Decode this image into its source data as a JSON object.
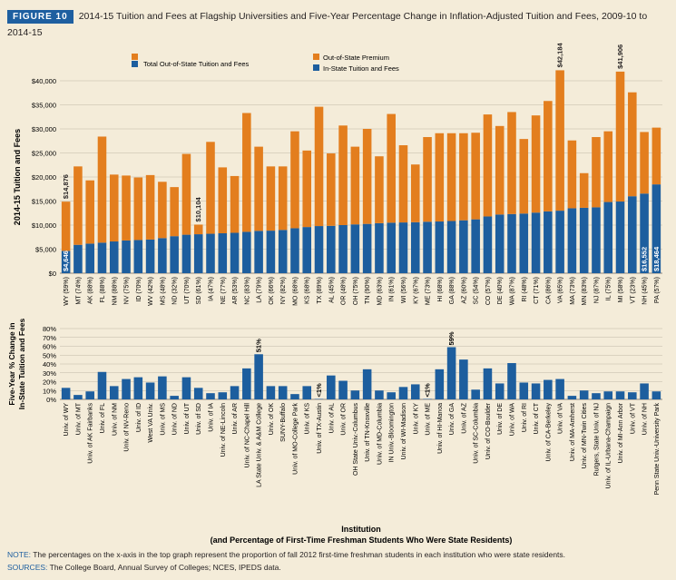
{
  "header": {
    "figure_label": "FIGURE 10",
    "title": "2014-15 Tuition and Fees at Flagship Universities and Five-Year Percentage Change in Inflation-Adjusted Tuition and Fees, 2009-10 to 2014-15"
  },
  "colors": {
    "in_state": "#1d5e9e",
    "premium": "#e37e1e",
    "background": "#f4ecd9",
    "grid": "#bfb8a8",
    "annotation": "#231f20"
  },
  "footer": {
    "note_label": "NOTE:",
    "note_text": "The percentages on the x-axis in the top graph represent the proportion of fall 2012 first-time freshman students in each institution who were state residents.",
    "sources_label": "SOURCES:",
    "sources_text": "The College Board, Annual Survey of Colleges; NCES, IPEDS data."
  },
  "chart_data": [
    {
      "type": "bar",
      "stacked": true,
      "ylabel": "2014-15 Tuition and Fees",
      "ylim": [
        0,
        40000
      ],
      "yticks": [
        "$0",
        "$5,000",
        "$10,000",
        "$15,000",
        "$20,000",
        "$25,000",
        "$30,000",
        "$35,000",
        "$40,000"
      ],
      "grid": true,
      "legend": [
        "Total Out-of-State Tuition and Fees",
        "Out-of-State Premium",
        "In-State Tuition and Fees"
      ],
      "categories": [
        "WY (59%)",
        "MT (74%)",
        "AK (88%)",
        "FL (88%)",
        "NM (88%)",
        "NV (75%)",
        "ID (70%)",
        "WV (42%)",
        "MS (48%)",
        "ND (32%)",
        "UT (70%)",
        "SD (61%)",
        "IA (47%)",
        "NE (77%)",
        "AR (53%)",
        "NC (83%)",
        "LA (79%)",
        "OK (66%)",
        "NY (82%)",
        "MO (68%)",
        "KS (68%)",
        "TX (89%)",
        "AL (45%)",
        "OR (48%)",
        "OH (75%)",
        "TN (90%)",
        "MD (63%)",
        "IN (61%)",
        "WI (56%)",
        "KY (67%)",
        "ME (73%)",
        "HI (68%)",
        "GA (88%)",
        "AZ (60%)",
        "SC (54%)",
        "CO (57%)",
        "DE (40%)",
        "WA (87%)",
        "RI (48%)",
        "CT (71%)",
        "CA (86%)",
        "VA (65%)",
        "MA (73%)",
        "MN (83%)",
        "NJ (87%)",
        "IL (75%)",
        "MI (58%)",
        "VT (23%)",
        "NH (45%)",
        "PA (57%)"
      ],
      "series": [
        {
          "name": "In-State Tuition and Fees",
          "values": [
            4646,
            5900,
            6150,
            6350,
            6600,
            6800,
            6900,
            7000,
            7300,
            7700,
            8000,
            8100,
            8200,
            8300,
            8400,
            8600,
            8800,
            8850,
            9000,
            9350,
            9600,
            9800,
            9850,
            10000,
            10150,
            10250,
            10400,
            10500,
            10550,
            10600,
            10700,
            10750,
            10850,
            11000,
            11200,
            11800,
            12200,
            12300,
            12400,
            12600,
            12850,
            13000,
            13500,
            13600,
            13700,
            14800,
            14900,
            16000,
            16552,
            18464
          ]
        },
        {
          "name": "Out-of-State Premium",
          "values": [
            10230,
            16300,
            13150,
            22050,
            13900,
            13500,
            13000,
            13400,
            11700,
            10200,
            16800,
            2004,
            19100,
            13700,
            11800,
            24700,
            17500,
            13350,
            13200,
            20150,
            15900,
            24800,
            15050,
            20700,
            16150,
            19750,
            13900,
            22600,
            16050,
            12000,
            17600,
            18350,
            18250,
            18100,
            18000,
            21200,
            18400,
            21200,
            15500,
            20200,
            22950,
            29184,
            14100,
            7200,
            14600,
            14700,
            27006,
            21600,
            12800,
            11800
          ]
        }
      ],
      "data_labels": {
        "WY (59%)": [
          "$4,646",
          "$14,876"
        ],
        "SD (61%)": [
          "$10,104"
        ],
        "VA (65%)": [
          "$42,184"
        ],
        "MI (58%)": [
          "$41,906"
        ],
        "NH (45%)": [
          "$16,552"
        ],
        "PA (57%)": [
          "$18,464"
        ]
      }
    },
    {
      "type": "bar",
      "ylabel": "Five-Year % Change in In-State Tuition and Fees",
      "xlabel": "Institution",
      "xlabel_sub": "(and Percentage of First-Time Freshman Students Who Were State Residents)",
      "ylim": [
        0,
        80
      ],
      "yticks": [
        "0%",
        "10%",
        "20%",
        "30%",
        "40%",
        "50%",
        "60%",
        "70%",
        "80%"
      ],
      "grid": true,
      "categories": [
        "Univ. of WY",
        "Univ. of MT",
        "Univ. of AK Fairbanks",
        "Univ. of FL",
        "Univ. of NM",
        "Univ. of NV-Reno",
        "Univ. of ID",
        "West VA Univ.",
        "Univ. of MS",
        "Univ. of ND",
        "Univ. of UT",
        "Univ. of SD",
        "Univ. of IA",
        "Univ. of NE-Lincoln",
        "Univ. of AR",
        "Univ. of NC-Chapel Hill",
        "LA State Univ. & A&M College",
        "Univ. of OK",
        "SUNY-Buffalo",
        "Univ. of MO-College Park",
        "Univ. of KS",
        "Univ. of TX-Austin",
        "Univ. of AL",
        "Univ. of OR",
        "OH State Univ.-Columbus",
        "Univ. of TN-Knoxville",
        "Univ. of MD-Columbia",
        "IN Univ.-Bloomington",
        "Univ. of WI-Madison",
        "Univ. of KY",
        "Univ. of ME",
        "Univ. of HI-Manoa",
        "Univ. of GA",
        "Univ. of AZ",
        "Univ. of SC-Columbia",
        "Univ. of CO-Boulder",
        "Univ. of DE",
        "Univ. of WA",
        "Univ. of RI",
        "Univ. of CT",
        "Univ. of CA-Berkeley",
        "Univ. of VA",
        "Univ. of MA-Amherst",
        "Univ. of MN-Twin Cities",
        "Rutgers, State Univ. of NJ",
        "Univ. of IL-Urbana-Champaign",
        "Univ. of MI-Ann Arbor",
        "Univ. of VT",
        "Univ. of NH",
        "Penn State Univ.-University Park"
      ],
      "values": [
        13,
        5,
        9,
        31,
        15,
        23,
        25,
        19,
        26,
        4,
        25,
        13,
        7,
        8,
        15,
        35,
        51,
        15,
        15,
        6,
        15,
        0.5,
        27,
        21,
        10,
        34,
        10,
        8,
        14,
        17,
        0.5,
        34,
        59,
        45,
        11,
        35,
        18,
        41,
        19,
        18,
        22,
        23,
        4,
        10,
        7,
        9,
        9,
        8,
        18,
        9
      ],
      "data_labels": {
        "LA State Univ. & A&M College": "51%",
        "Univ. of TX-Austin": "<1%",
        "Univ. of ME": "<1%",
        "Univ. of GA": "59%"
      }
    }
  ]
}
